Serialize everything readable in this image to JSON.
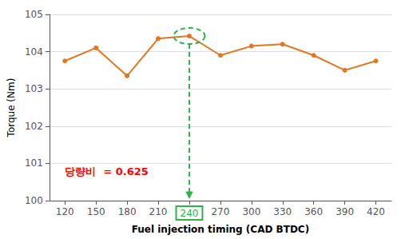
{
  "chart_data": {
    "type": "line",
    "x": [
      120,
      150,
      180,
      210,
      240,
      270,
      300,
      330,
      360,
      390,
      420
    ],
    "values": [
      103.75,
      104.1,
      103.35,
      104.35,
      104.42,
      103.9,
      104.15,
      104.2,
      103.9,
      103.5,
      103.75
    ],
    "color": "#E07820",
    "marker": "circle",
    "xlabel": "Fuel injection timing (CAD BTDC)",
    "ylabel": "Torque (Nm)",
    "xlim": [
      105,
      435
    ],
    "ylim": [
      100,
      105
    ],
    "xticks": [
      120,
      150,
      180,
      210,
      240,
      270,
      300,
      330,
      360,
      390,
      420
    ],
    "yticks": [
      100,
      101,
      102,
      103,
      104,
      105
    ],
    "grid": true,
    "annotations": [
      {
        "text": "당량비  = 0.625",
        "x": 120,
        "y": 100.65,
        "color": "red"
      }
    ],
    "highlight": {
      "x": 240,
      "y": 104.42,
      "color": "#2DB34A"
    }
  }
}
